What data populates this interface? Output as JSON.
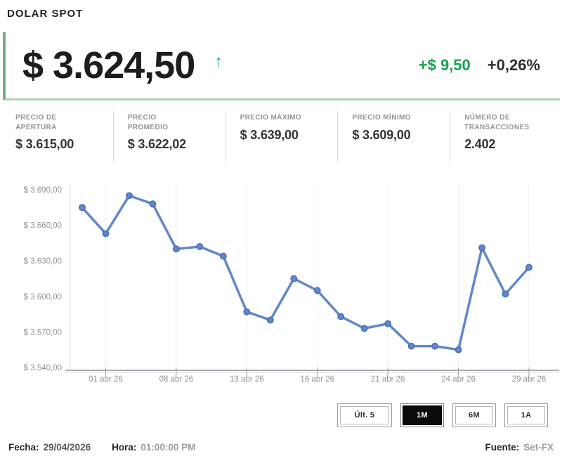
{
  "header": {
    "title": "DOLAR SPOT"
  },
  "quote": {
    "price": "$ 3.624,50",
    "up_arrow_glyph": "↑",
    "change_abs": "+$ 9,50",
    "change_pct": "+0,26%",
    "up_color": "#1e9e52",
    "border_green": "#74aa84"
  },
  "stats": [
    {
      "label": "PRECIO DE\nAPERTURA",
      "value": "$ 3.615,00"
    },
    {
      "label": "PRECIO\nPROMEDIO",
      "value": "$ 3.622,02"
    },
    {
      "label": "PRECIO MÁXIMO",
      "value": "$ 3.639,00"
    },
    {
      "label": "PRECIO MÍNIMO",
      "value": "$ 3.609,00"
    },
    {
      "label": "NÚMERO DE\nTRANSACCIONES",
      "value": "2.402"
    }
  ],
  "chart_data": {
    "type": "line",
    "series": [
      {
        "name": "Dolar spot 1M",
        "values": [
          3675,
          3653,
          3685,
          3678,
          3640,
          3642,
          3634,
          3587,
          3580,
          3615,
          3605,
          3583,
          3573,
          3577,
          3558,
          3558,
          3555,
          3641,
          3602,
          3624.5
        ]
      }
    ],
    "x_tick_indices": [
      1,
      4,
      7,
      10,
      13,
      16,
      19
    ],
    "x_tick_labels": [
      "01 abr 26",
      "08 abr 26",
      "13 abr 26",
      "16 abr 26",
      "21 abr 26",
      "24 abr 26",
      "29 abr 26"
    ],
    "y_ticks": [
      3540,
      3570,
      3600,
      3630,
      3660,
      3690
    ],
    "y_tick_labels": [
      "$ 3.540,00",
      "$ 3.570,00",
      "$ 3.600,00",
      "$ 3.630,00",
      "$ 3.660,00",
      "$ 3.690,00"
    ],
    "ylim": [
      3540,
      3690
    ],
    "grid": "faint-vertical-at-ticks",
    "legend": "none",
    "title": "",
    "line_color": "#6287c9",
    "marker_stroke": "#4a6fae",
    "axis_color": "#a8abb0",
    "label_color": "#8f949b"
  },
  "range_buttons": [
    {
      "label": "Últ. 5",
      "active": false
    },
    {
      "label": "1M",
      "active": true
    },
    {
      "label": "6M",
      "active": false
    },
    {
      "label": "1A",
      "active": false
    }
  ],
  "footer": {
    "fecha_label": "Fecha:",
    "fecha_value": "29/04/2026",
    "hora_label": "Hora:",
    "hora_value": "01:00:00 PM",
    "fuente_label": "Fuente:",
    "fuente_value": "Set-FX"
  }
}
